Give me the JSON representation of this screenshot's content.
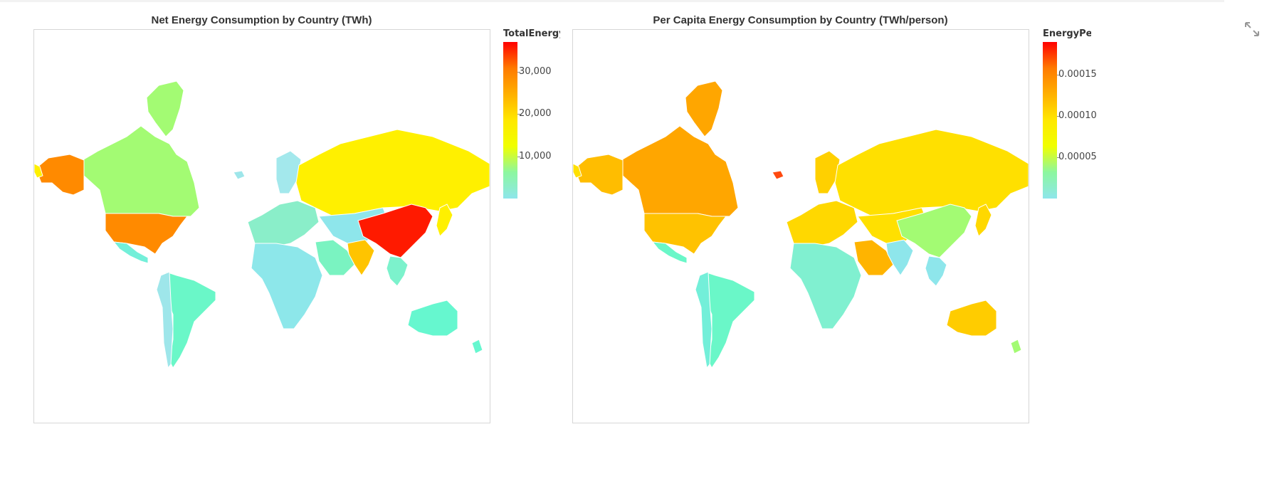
{
  "maps": [
    {
      "title": "Net Energy Consumption by Country (TWh)",
      "colorbar_title": "TotalEnergy",
      "ticks": [
        {
          "label": "30,000",
          "value": 30000
        },
        {
          "label": "20,000",
          "value": 20000
        },
        {
          "label": "10,000",
          "value": 10000
        }
      ],
      "range": [
        0,
        37000
      ],
      "regions": {
        "canada": "#a3fb73",
        "greenland": "#a3fb73",
        "alaska": "#ff8a00",
        "usa": "#ff8a00",
        "mexico": "#73efd9",
        "south-america": "#6af7c8",
        "andes": "#9ee6ea",
        "russia": "#fff000",
        "china": "#ff1a00",
        "india": "#ffc400",
        "europe": "#8aeec9",
        "scandinavia": "#a3e8ec",
        "middle-east": "#7af3c1",
        "africa": "#8de7ea",
        "central-asia": "#8ee6eb",
        "se-asia": "#7cf2cc",
        "japan": "#fff000",
        "australia": "#66f7cf",
        "new-zealand": "#66f7cf",
        "iceland": "#9ee6ea",
        "alaska-tip": "#fff000"
      }
    },
    {
      "title": "Per Capita Energy Consumption by Country (TWh/person)",
      "colorbar_title": "EnergyPerC",
      "ticks": [
        {
          "label": "0.00015",
          "value": 0.00015
        },
        {
          "label": "0.00010",
          "value": 0.0001
        },
        {
          "label": "0.00005",
          "value": 5e-05
        }
      ],
      "range": [
        0,
        0.00019
      ],
      "regions": {
        "canada": "#ffa600",
        "greenland": "#ffa600",
        "alaska": "#ffbd00",
        "usa": "#ffc200",
        "mexico": "#6af7c8",
        "south-america": "#6af7c8",
        "andes": "#73efd9",
        "russia": "#ffe000",
        "china": "#a3fb73",
        "india": "#8ee6eb",
        "europe": "#ffd800",
        "scandinavia": "#ffd000",
        "middle-east": "#ffb400",
        "africa": "#80f0d0",
        "central-asia": "#ffe000",
        "se-asia": "#8ee6eb",
        "japan": "#ffd800",
        "australia": "#ffcc00",
        "new-zealand": "#a3fb73",
        "iceland": "#ff4a10",
        "alaska-tip": "#ffe000"
      }
    }
  ]
}
